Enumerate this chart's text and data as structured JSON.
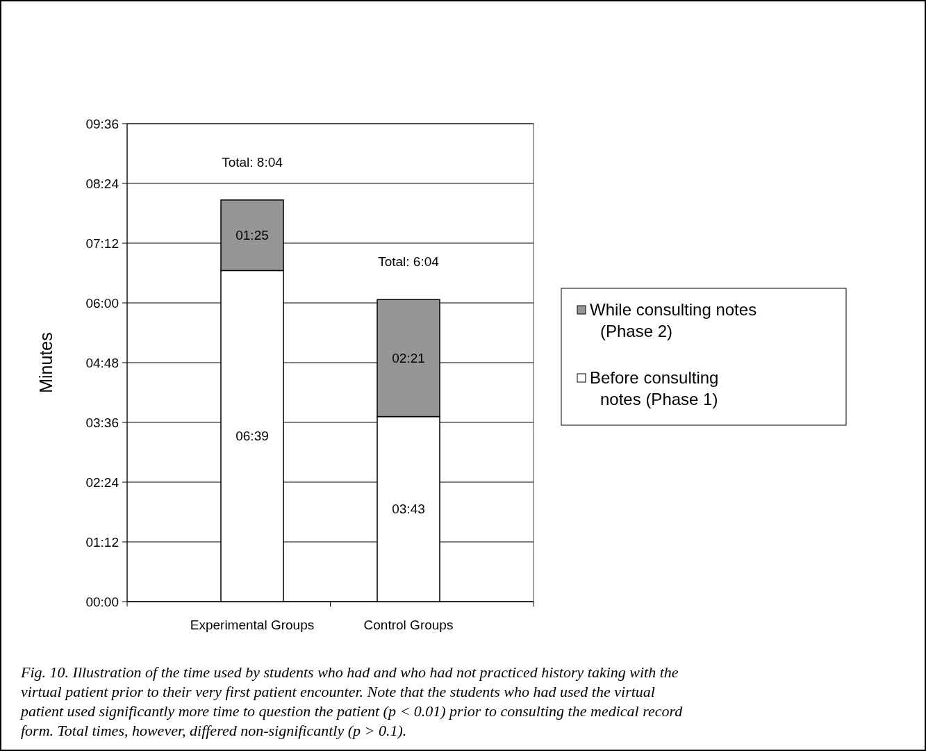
{
  "chart_data": {
    "type": "bar",
    "stacked": true,
    "ylabel": "Minutes",
    "categories": [
      "Experimental Groups",
      "Control Groups"
    ],
    "series": [
      {
        "name": "Before consulting notes (Phase 1)",
        "color": "#ffffff",
        "values": [
          6.65,
          3.7167
        ],
        "value_labels": [
          "06:39",
          "03:43"
        ]
      },
      {
        "name": "While consulting notes (Phase 2)",
        "color": "#969696",
        "values": [
          1.4167,
          2.35
        ],
        "value_labels": [
          "01:25",
          "02:21"
        ]
      }
    ],
    "totals": [
      "Total: 8:04",
      "Total: 6:04"
    ],
    "ylim": [
      0,
      9.6
    ],
    "yticks": [
      {
        "value": 0,
        "label": "00:00"
      },
      {
        "value": 1.2,
        "label": "01:12"
      },
      {
        "value": 2.4,
        "label": "02:24"
      },
      {
        "value": 3.6,
        "label": "03:36"
      },
      {
        "value": 4.8,
        "label": "04:48"
      },
      {
        "value": 6,
        "label": "06:00"
      },
      {
        "value": 7.2,
        "label": "07:12"
      },
      {
        "value": 8.4,
        "label": "08:24"
      },
      {
        "value": 9.6,
        "label": "09:36"
      }
    ],
    "grid": "y",
    "legend": "right",
    "annotations": [
      "Fig. 10.  Illustration of the time used by students who had and who had not practiced history taking with the virtual patient prior to their very first patient encounter. Note that the students who had used the virtual patient used significantly more time to question the patient (p < 0.01) prior to consulting the medical record form. Total times, however, differed non-significantly (p > 0.1)."
    ]
  }
}
